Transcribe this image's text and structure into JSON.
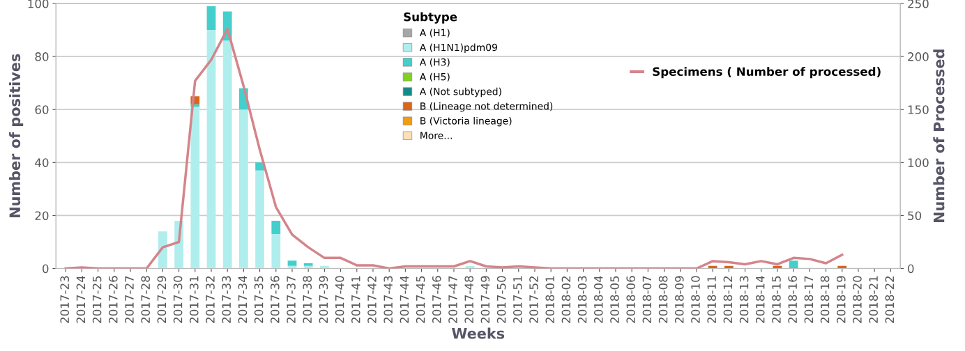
{
  "chart_data": {
    "type": "bar",
    "stacked": true,
    "xlabel": "Weeks",
    "ylabel": "Number of positives",
    "y2label": "Number of Processed",
    "legend_title": "Subtype",
    "legend": "top",
    "grid": "y",
    "categories": [
      "2017-23",
      "2017-24",
      "2017-25",
      "2017-26",
      "2017-27",
      "2017-28",
      "2017-29",
      "2017-30",
      "2017-31",
      "2017-32",
      "2017-33",
      "2017-34",
      "2017-35",
      "2017-36",
      "2017-37",
      "2017-38",
      "2017-39",
      "2017-40",
      "2017-41",
      "2017-42",
      "2017-43",
      "2017-44",
      "2017-45",
      "2017-46",
      "2017-47",
      "2017-48",
      "2017-49",
      "2017-50",
      "2017-51",
      "2017-52",
      "2018-01",
      "2018-02",
      "2018-03",
      "2018-04",
      "2018-05",
      "2018-06",
      "2018-07",
      "2018-08",
      "2018-09",
      "2018-10",
      "2018-11",
      "2018-12",
      "2018-13",
      "2018-14",
      "2018-15",
      "2018-16",
      "2018-17",
      "2018-18",
      "2018-19",
      "2018-20",
      "2018-21",
      "2018-22"
    ],
    "ylim": [
      0,
      100
    ],
    "yticks": [
      0,
      20,
      40,
      60,
      80,
      100
    ],
    "y2lim": [
      0,
      250
    ],
    "y2ticks": [
      0,
      50,
      100,
      150,
      200,
      250
    ],
    "series": [
      {
        "name": "A (H1)",
        "color": "#a6a6a6",
        "values": [
          0,
          0,
          0,
          0,
          0,
          0,
          0,
          0,
          0,
          0,
          0,
          0,
          0,
          0,
          0,
          0,
          0,
          0,
          0,
          0,
          0,
          0,
          0,
          0,
          0,
          0,
          0,
          0,
          0,
          0,
          0,
          0,
          0,
          0,
          0,
          0,
          0,
          0,
          0,
          0,
          0,
          0,
          0,
          0,
          0,
          0,
          0,
          0,
          0,
          0,
          0,
          0
        ]
      },
      {
        "name": "A (H1N1)pdm09",
        "color": "#b0eeee",
        "values": [
          0,
          0,
          0,
          0,
          0,
          0,
          14,
          18,
          61,
          90,
          86,
          60,
          37,
          13,
          1,
          1,
          1,
          0,
          0,
          0,
          0,
          0,
          0,
          0,
          0,
          1,
          0,
          0,
          0,
          0,
          0,
          0,
          0,
          0,
          0,
          0,
          0,
          0,
          0,
          0,
          0,
          0,
          0,
          0,
          0,
          0,
          0,
          0,
          0,
          0,
          0,
          0
        ]
      },
      {
        "name": "A (H3)",
        "color": "#44cfcc",
        "values": [
          0,
          0,
          0,
          0,
          0,
          0,
          0,
          0,
          1,
          9,
          11,
          8,
          3,
          5,
          2,
          1,
          0,
          0,
          0,
          0,
          0,
          0,
          0,
          0,
          0,
          0,
          0,
          0,
          0,
          0,
          0,
          0,
          0,
          0,
          0,
          0,
          0,
          0,
          0,
          0,
          0,
          0,
          0,
          0,
          0,
          3,
          0,
          0,
          0,
          0,
          0,
          0
        ]
      },
      {
        "name": "A (H5)",
        "color": "#7ed321",
        "values": [
          0,
          0,
          0,
          0,
          0,
          0,
          0,
          0,
          0,
          0,
          0,
          0,
          0,
          0,
          0,
          0,
          0,
          0,
          0,
          0,
          0,
          0,
          0,
          0,
          0,
          0,
          0,
          0,
          0,
          0,
          0,
          0,
          0,
          0,
          0,
          0,
          0,
          0,
          0,
          0,
          0,
          0,
          0,
          0,
          0,
          0,
          0,
          0,
          0,
          0,
          0,
          0
        ]
      },
      {
        "name": "A (Not subtyped)",
        "color": "#138a8a",
        "values": [
          0,
          0,
          0,
          0,
          0,
          0,
          0,
          0,
          0,
          0,
          0,
          0,
          0,
          0,
          0,
          0,
          0,
          0,
          0,
          0,
          0,
          0,
          0,
          0,
          0,
          0,
          0,
          0,
          0,
          0,
          0,
          0,
          0,
          0,
          0,
          0,
          0,
          0,
          0,
          0,
          0,
          0,
          0,
          0,
          0,
          0,
          0,
          0,
          0,
          0,
          0,
          0
        ]
      },
      {
        "name": "B (Lineage not determined)",
        "color": "#d9661c",
        "values": [
          0,
          0,
          0,
          0,
          0,
          0,
          0,
          0,
          3,
          0,
          0,
          0,
          0,
          0,
          0,
          0,
          0,
          0,
          0,
          0,
          0,
          0,
          0,
          0,
          0,
          0,
          0,
          0,
          0,
          0,
          0,
          0,
          0,
          0,
          0,
          0,
          0,
          0,
          0,
          0,
          1,
          1,
          0,
          0,
          1,
          0,
          0,
          0,
          1,
          0,
          0,
          0
        ]
      },
      {
        "name": "B (Victoria lineage)",
        "color": "#f39c12",
        "values": [
          0,
          0,
          0,
          0,
          0,
          0,
          0,
          0,
          0,
          0,
          0,
          0,
          0,
          0,
          0,
          0,
          0,
          0,
          0,
          0,
          0,
          0,
          0,
          0,
          0,
          0,
          0,
          0,
          0,
          0,
          0,
          0,
          0,
          0,
          0,
          0,
          0,
          0,
          0,
          0,
          0,
          0,
          0,
          0,
          0,
          0,
          0,
          0,
          0,
          0,
          0,
          0
        ]
      },
      {
        "name": "More...",
        "color": "#fde0b8",
        "values": [
          0,
          0,
          0,
          0,
          0,
          0,
          0,
          0,
          0,
          0,
          0,
          0,
          0,
          0,
          0,
          0,
          0,
          0,
          0,
          0,
          0,
          0,
          0,
          0,
          0,
          0,
          0,
          0,
          0,
          0,
          0,
          0,
          0,
          0,
          0,
          0,
          0,
          0,
          0,
          0,
          0,
          0,
          0,
          0,
          0,
          0,
          0,
          0,
          0,
          0,
          0,
          0
        ]
      },
      {
        "name": "Specimens ( Number of processed)",
        "type": "line",
        "axis": "y2",
        "color": "#d4848a",
        "values": [
          0,
          1,
          0,
          0,
          0,
          0,
          20,
          25,
          177,
          197,
          226,
          172,
          112,
          58,
          32,
          20,
          10,
          10,
          3,
          3,
          0,
          2,
          2,
          2,
          2,
          7,
          2,
          1,
          2,
          1,
          0,
          0,
          0,
          0,
          0,
          0,
          0,
          0,
          0,
          0,
          7,
          6,
          4,
          7,
          4,
          10,
          9,
          5,
          13,
          null,
          null,
          null
        ]
      }
    ]
  }
}
